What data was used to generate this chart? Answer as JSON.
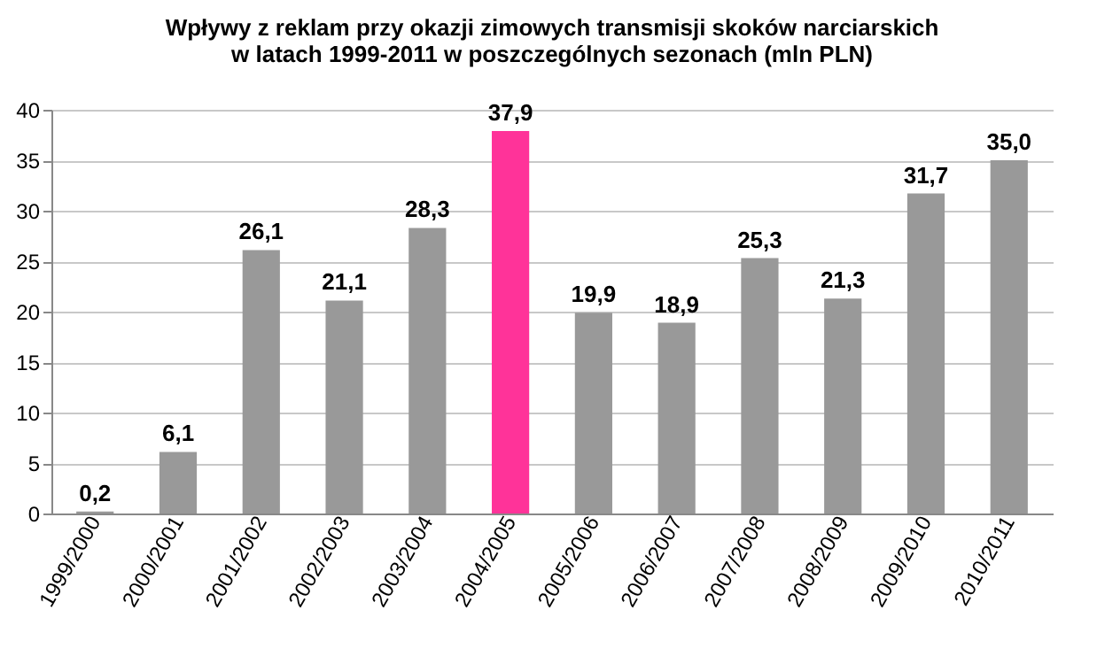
{
  "chart_data": {
    "type": "bar",
    "title": "Wpływy z reklam przy okazji zimowych transmisji skoków narciarskich\nw latach 1999-2011  w poszczególnych sezonach (mln PLN)",
    "categories": [
      "1999/2000",
      "2000/2001",
      "2001/2002",
      "2002/2003",
      "2003/2004",
      "2004/2005",
      "2005/2006",
      "2006/2007",
      "2007/2008",
      "2008/2009",
      "2009/2010",
      "2010/2011"
    ],
    "values": [
      0.2,
      6.1,
      26.1,
      21.1,
      28.3,
      37.9,
      19.9,
      18.9,
      25.3,
      21.3,
      31.7,
      35.0
    ],
    "value_labels": [
      "0,2",
      "6,1",
      "26,1",
      "21,1",
      "28,3",
      "37,9",
      "19,9",
      "18,9",
      "25,3",
      "21,3",
      "31,7",
      "35,0"
    ],
    "colors": [
      "#999999",
      "#999999",
      "#999999",
      "#999999",
      "#999999",
      "#ff3399",
      "#999999",
      "#999999",
      "#999999",
      "#999999",
      "#999999",
      "#999999"
    ],
    "ylim": [
      0,
      40
    ],
    "yticks": [
      0,
      5,
      10,
      15,
      20,
      25,
      30,
      35,
      40
    ],
    "grid": "y"
  }
}
